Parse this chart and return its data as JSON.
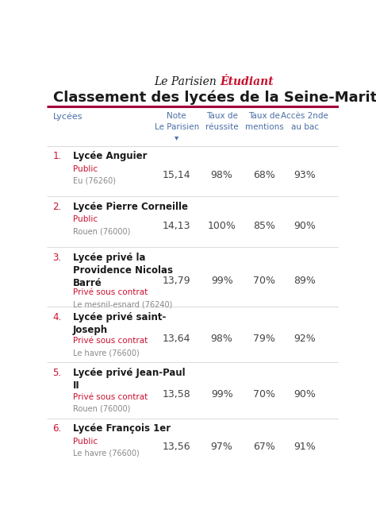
{
  "brand_left": "Le Parisien",
  "brand_right": "Étudiant",
  "brand_color_left": "#1a1a1a",
  "brand_color_right": "#c8102e",
  "title": "Classement des lycées de la Seine-Maritime",
  "title_color": "#1a1a1a",
  "col_header_color": "#4a6fa5",
  "lycees_col_header": "Lycées",
  "rows": [
    {
      "rank": "1.",
      "name": "Lycée Anguier",
      "type": "Public",
      "location": "Eu (76260)",
      "note": "15,14",
      "reussite": "98%",
      "mentions": "68%",
      "acces": "93%"
    },
    {
      "rank": "2.",
      "name": "Lycée Pierre Corneille",
      "type": "Public",
      "location": "Rouen (76000)",
      "note": "14,13",
      "reussite": "100%",
      "mentions": "85%",
      "acces": "90%"
    },
    {
      "rank": "3.",
      "name": "Lycée privé la\nProvidence Nicolas\nBarré",
      "type": "Privé sous contrat",
      "location": "Le mesnil-esnard (76240)",
      "note": "13,79",
      "reussite": "99%",
      "mentions": "70%",
      "acces": "89%"
    },
    {
      "rank": "4.",
      "name": "Lycée privé saint-\nJoseph",
      "type": "Privé sous contrat",
      "location": "Le havre (76600)",
      "note": "13,64",
      "reussite": "98%",
      "mentions": "79%",
      "acces": "92%"
    },
    {
      "rank": "5.",
      "name": "Lycée privé Jean-Paul\nII",
      "type": "Privé sous contrat",
      "location": "Rouen (76000)",
      "note": "13,58",
      "reussite": "99%",
      "mentions": "70%",
      "acces": "90%"
    },
    {
      "rank": "6.",
      "name": "Lycée François 1er",
      "type": "Public",
      "location": "Le havre (76600)",
      "note": "13,56",
      "reussite": "97%",
      "mentions": "67%",
      "acces": "91%"
    }
  ],
  "rank_color": "#c8102e",
  "type_color": "#c8102e",
  "location_color": "#888888",
  "name_color": "#1a1a1a",
  "data_color": "#444444",
  "bg_color": "#ffffff",
  "separator_color": "#dddddd",
  "header_line_color": "#a0003c"
}
